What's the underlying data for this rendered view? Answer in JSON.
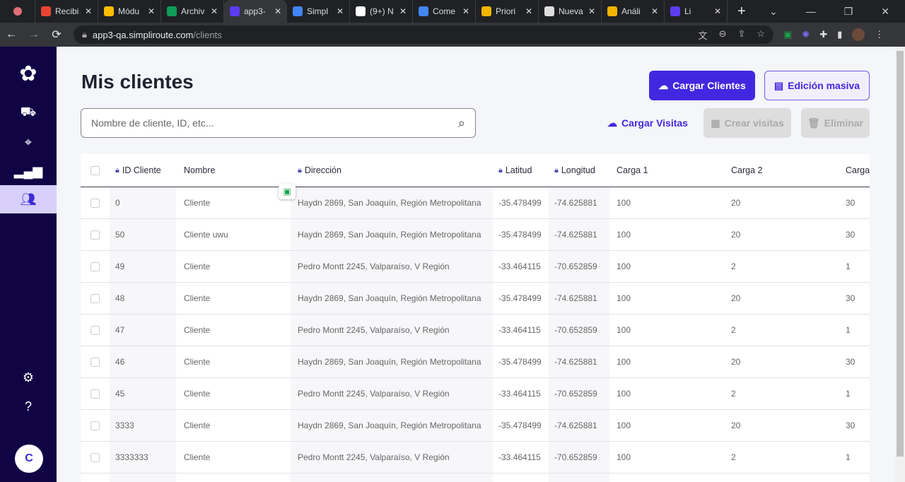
{
  "browser": {
    "tabs": [
      {
        "label": "Recibi",
        "icon": "gmail-icon",
        "color": "#ea4335"
      },
      {
        "label": "Módu",
        "icon": "drive-icon",
        "color": "#fbbc04"
      },
      {
        "label": "Archiv",
        "icon": "sheets-icon",
        "color": "#0f9d58"
      },
      {
        "label": "app3-",
        "icon": "simpliroute-icon",
        "color": "#5b3cf0",
        "active": true
      },
      {
        "label": "Simpl",
        "icon": "calendar-icon",
        "color": "#4285f4"
      },
      {
        "label": "(9+) N",
        "icon": "notion-icon",
        "color": "#ffffff"
      },
      {
        "label": "Come",
        "icon": "docs-icon",
        "color": "#4285f4"
      },
      {
        "label": "Priori",
        "icon": "priority-icon",
        "color": "#f4b400"
      },
      {
        "label": "Nueva",
        "icon": "chrome-icon",
        "color": "#dddddd"
      },
      {
        "label": "Análi",
        "icon": "slides-icon",
        "color": "#f4b400"
      },
      {
        "label": "Li",
        "icon": "gear-purple-icon",
        "color": "#5b3cf0"
      }
    ],
    "url_host": "app3-qa.simpliroute.com",
    "url_path": "/clients"
  },
  "sidebar": {
    "items": [
      "routes-icon",
      "location-icon",
      "reports-icon",
      "clients-icon"
    ],
    "active": "clients-icon",
    "avatar": "C"
  },
  "page": {
    "title": "Mis clientes",
    "search_placeholder": "Nombre de cliente, ID, etc...",
    "buttons": {
      "cargar_clientes": "Cargar Clientes",
      "edicion_masiva": "Edición masiva",
      "cargar_visitas": "Cargar Visitas",
      "crear_visitas": "Crear visitas",
      "eliminar": "Eliminar"
    },
    "accent": "#4327e0"
  },
  "table": {
    "headers": [
      "ID Cliente",
      "Nombre",
      "Dirección",
      "Latitud",
      "Longitud",
      "Carga 1",
      "Carga 2",
      "Carga"
    ],
    "rows": [
      [
        "0",
        "Cliente",
        "Haydn 2869, San Joaquín, Región Metropolitana",
        "-35.478499",
        "-74.625881",
        "100",
        "20",
        "30"
      ],
      [
        "50",
        "Cliente uwu",
        "Haydn 2869, San Joaquín, Región Metropolitana",
        "-35.478499",
        "-74.625881",
        "100",
        "20",
        "30"
      ],
      [
        "49",
        "Cliente",
        "Pedro Montt 2245, Valparaíso, V Región",
        "-33.464115",
        "-70.652859",
        "100",
        "2",
        "1"
      ],
      [
        "48",
        "Cliente",
        "Haydn 2869, San Joaquín, Región Metropolitana",
        "-35.478499",
        "-74.625881",
        "100",
        "20",
        "30"
      ],
      [
        "47",
        "Cliente",
        "Pedro Montt 2245, Valparaíso, V Región",
        "-33.464115",
        "-70.652859",
        "100",
        "2",
        "1"
      ],
      [
        "46",
        "Cliente",
        "Haydn 2869, San Joaquín, Región Metropolitana",
        "-35.478499",
        "-74.625881",
        "100",
        "20",
        "30"
      ],
      [
        "45",
        "Cliente",
        "Pedro Montt 2245, Valparaíso, V Región",
        "-33.464115",
        "-70.652859",
        "100",
        "2",
        "1"
      ],
      [
        "3333",
        "Cliente",
        "Haydn 2869, San Joaquín, Región Metropolitana",
        "-35.478499",
        "-74.625881",
        "100",
        "20",
        "30"
      ],
      [
        "3333333",
        "Cliente",
        "Pedro Montt 2245, Valparaíso, V Región",
        "-33.464115",
        "-70.652859",
        "100",
        "2",
        "1"
      ]
    ]
  }
}
